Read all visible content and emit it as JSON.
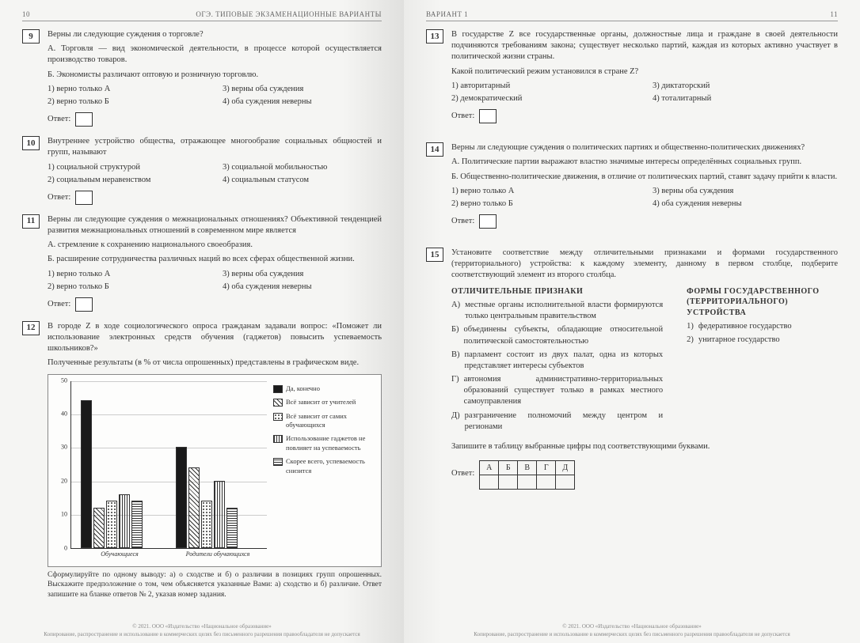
{
  "header": {
    "book_title": "ОГЭ. ТИПОВЫЕ ЭКЗАМЕНАЦИОННЫЕ ВАРИАНТЫ",
    "variant": "ВАРИАНТ 1",
    "page_left": "10",
    "page_right": "11"
  },
  "answer_label": "Ответ:",
  "q9": {
    "num": "9",
    "text": "Верны ли следующие суждения о торговле?",
    "a": "А. Торговля — вид экономической деятельности, в процессе которой осуществляется производство товаров.",
    "b": "Б. Экономисты различают оптовую и розничную торговлю.",
    "opts": [
      "1) верно только А",
      "2) верно только Б",
      "3) верны оба суждения",
      "4) оба суждения неверны"
    ]
  },
  "q10": {
    "num": "10",
    "text": "Внутреннее устройство общества, отражающее многообразие социальных общностей и групп, называют",
    "opts": [
      "1) социальной структурой",
      "2) социальным неравенством",
      "3) социальной мобильностью",
      "4) социальным статусом"
    ]
  },
  "q11": {
    "num": "11",
    "text": "Верны ли следующие суждения о межнациональных отношениях? Объективной тенденцией развития межнациональных отношений в современном мире является",
    "a": "А. стремление к сохранению национального своеобразия.",
    "b": "Б. расширение сотрудничества различных наций во всех сферах общественной жизни.",
    "opts": [
      "1) верно только А",
      "2) верно только Б",
      "3) верны оба суждения",
      "4) оба суждения неверны"
    ]
  },
  "q12": {
    "num": "12",
    "text": "В городе Z в ходе социологического опроса гражданам задавали вопрос: «Поможет ли использование электронных средств обучения (гаджетов) повысить успеваемость школьников?»",
    "sub": "Полученные результаты (в % от числа опрошенных) представлены в графическом виде.",
    "task": "Сформулируйте по одному выводу: а) о сходстве и б) о различии в позициях групп опрошенных. Выскажите предположение о том, чем объясняется указанные Вами: а) сходство и б) различие. Ответ запишите на бланке ответов № 2, указав номер задания.",
    "chart": {
      "ylim": [
        0,
        50
      ],
      "ytick": [
        0,
        10,
        20,
        30,
        40,
        50
      ],
      "x_labels": [
        "Обучающиеся",
        "Родители обучающихся"
      ],
      "series": [
        {
          "label": "Да, конечно",
          "fill": "#1a1a1a",
          "values": [
            44,
            30
          ]
        },
        {
          "label": "Всё зависит от учителей",
          "fill": "diag",
          "values": [
            12,
            24
          ]
        },
        {
          "label": "Всё зависит от самих обучающихся",
          "fill": "dots",
          "values": [
            14,
            14
          ]
        },
        {
          "label": "Использование гаджетов не повлияет на успеваемость",
          "fill": "vlines",
          "values": [
            16,
            20
          ]
        },
        {
          "label": "Скорее всего, успеваемость снизится",
          "fill": "hlines",
          "values": [
            14,
            12
          ]
        }
      ]
    }
  },
  "q13": {
    "num": "13",
    "text": "В государстве Z все государственные органы, должностные лица и граждане в своей деятельности подчиняются требованиям закона; существует несколько партий, каждая из которых активно участвует в политической жизни страны.",
    "sub": "Какой политический режим установился в стране Z?",
    "opts": [
      "1) авторитарный",
      "2) демократический",
      "3) диктаторский",
      "4) тоталитарный"
    ]
  },
  "q14": {
    "num": "14",
    "text": "Верны ли следующие суждения о политических партиях и общественно-политических движениях?",
    "a": "А. Политические партии выражают властно значимые интересы определённых социальных групп.",
    "b": "Б. Общественно-политические движения, в отличие от политических партий, ставят задачу прийти к власти.",
    "opts": [
      "1) верно только А",
      "2) верно только Б",
      "3) верны оба суждения",
      "4) оба суждения неверны"
    ]
  },
  "q15": {
    "num": "15",
    "text": "Установите соответствие между отличительными признаками и формами государственного (территориального) устройства: к каждому элементу, данному в первом столбце, подберите соответствующий элемент из второго столбца.",
    "left_header": "ОТЛИЧИТЕЛЬНЫЕ ПРИЗНАКИ",
    "right_header": "ФОРМЫ ГОСУДАРСТВЕННОГО (ТЕРРИТОРИАЛЬНОГО) УСТРОЙСТВА",
    "left_items": [
      {
        "l": "А)",
        "t": "местные органы исполнительной власти формируются только центральным правительством"
      },
      {
        "l": "Б)",
        "t": "объединены субъекты, обладающие относительной политической самостоятельностью"
      },
      {
        "l": "В)",
        "t": "парламент состоит из двух палат, одна из которых представляет интересы субъектов"
      },
      {
        "l": "Г)",
        "t": "автономия административно-территориальных образований существует только в рамках местного самоуправления"
      },
      {
        "l": "Д)",
        "t": "разграничение полномочий между центром и регионами"
      }
    ],
    "right_items": [
      {
        "l": "1)",
        "t": "федеративное государство"
      },
      {
        "l": "2)",
        "t": "унитарное государство"
      }
    ],
    "table_instruction": "Запишите в таблицу выбранные цифры под соответствующими буквами.",
    "table_headers": [
      "А",
      "Б",
      "В",
      "Г",
      "Д"
    ]
  },
  "footer": {
    "copyright": "© 2021. ООО «Издательство «Национальное образование»",
    "note": "Копирование, распространение и использование в коммерческих целях без письменного разрешения правообладателя не допускается"
  }
}
